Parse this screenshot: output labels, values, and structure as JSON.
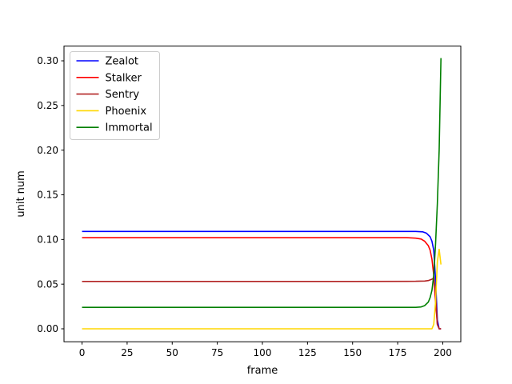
{
  "chart_data": {
    "type": "line",
    "title": "",
    "xlabel": "frame",
    "ylabel": "unit num",
    "xlim": [
      -10,
      210
    ],
    "ylim": [
      -0.0145,
      0.3165
    ],
    "xticks": [
      0,
      25,
      50,
      75,
      100,
      125,
      150,
      175,
      200
    ],
    "xtick_labels": [
      "0",
      "25",
      "50",
      "75",
      "100",
      "125",
      "150",
      "175",
      "200"
    ],
    "yticks": [
      0.0,
      0.05,
      0.1,
      0.15,
      0.2,
      0.25,
      0.3
    ],
    "ytick_labels": [
      "0.00",
      "0.05",
      "0.10",
      "0.15",
      "0.20",
      "0.25",
      "0.30"
    ],
    "grid": false,
    "legend_position": "top-left",
    "series": [
      {
        "name": "Zealot",
        "color": "#0000ff",
        "points": [
          [
            0,
            0.109
          ],
          [
            50,
            0.109
          ],
          [
            100,
            0.109
          ],
          [
            150,
            0.109
          ],
          [
            185,
            0.109
          ],
          [
            189,
            0.1085
          ],
          [
            191,
            0.107
          ],
          [
            193,
            0.103
          ],
          [
            194,
            0.098
          ],
          [
            195,
            0.088
          ],
          [
            196,
            0.055
          ],
          [
            197,
            0.01
          ],
          [
            198,
            0.0
          ],
          [
            199,
            0.0
          ]
        ]
      },
      {
        "name": "Stalker",
        "color": "#ff0000",
        "points": [
          [
            0,
            0.102
          ],
          [
            50,
            0.102
          ],
          [
            100,
            0.102
          ],
          [
            150,
            0.102
          ],
          [
            180,
            0.102
          ],
          [
            185,
            0.1015
          ],
          [
            188,
            0.1005
          ],
          [
            190,
            0.098
          ],
          [
            192,
            0.093
          ],
          [
            193,
            0.088
          ],
          [
            194,
            0.078
          ],
          [
            195,
            0.06
          ],
          [
            196,
            0.03
          ],
          [
            197,
            0.005
          ],
          [
            198,
            0.0
          ],
          [
            199,
            0.0
          ]
        ]
      },
      {
        "name": "Sentry",
        "color": "#b22222",
        "points": [
          [
            0,
            0.053
          ],
          [
            50,
            0.053
          ],
          [
            100,
            0.053
          ],
          [
            150,
            0.053
          ],
          [
            185,
            0.0532
          ],
          [
            190,
            0.0535
          ],
          [
            192,
            0.054
          ],
          [
            194,
            0.0555
          ],
          [
            195,
            0.057
          ],
          [
            196,
            0.04
          ],
          [
            197,
            0.005
          ],
          [
            198,
            0.0
          ],
          [
            199,
            0.0
          ]
        ]
      },
      {
        "name": "Phoenix",
        "color": "#ffd700",
        "points": [
          [
            0,
            0.0
          ],
          [
            50,
            0.0
          ],
          [
            100,
            0.0
          ],
          [
            150,
            0.0
          ],
          [
            190,
            0.0
          ],
          [
            194,
            0.0
          ],
          [
            195,
            0.005
          ],
          [
            196,
            0.03
          ],
          [
            197,
            0.075
          ],
          [
            198,
            0.089
          ],
          [
            199,
            0.072
          ]
        ]
      },
      {
        "name": "Immortal",
        "color": "#008000",
        "points": [
          [
            0,
            0.024
          ],
          [
            50,
            0.024
          ],
          [
            100,
            0.024
          ],
          [
            150,
            0.024
          ],
          [
            185,
            0.024
          ],
          [
            188,
            0.0245
          ],
          [
            190,
            0.026
          ],
          [
            192,
            0.03
          ],
          [
            193,
            0.035
          ],
          [
            194,
            0.043
          ],
          [
            195,
            0.06
          ],
          [
            196,
            0.095
          ],
          [
            197,
            0.14
          ],
          [
            198,
            0.2
          ],
          [
            199,
            0.303
          ]
        ]
      }
    ]
  }
}
